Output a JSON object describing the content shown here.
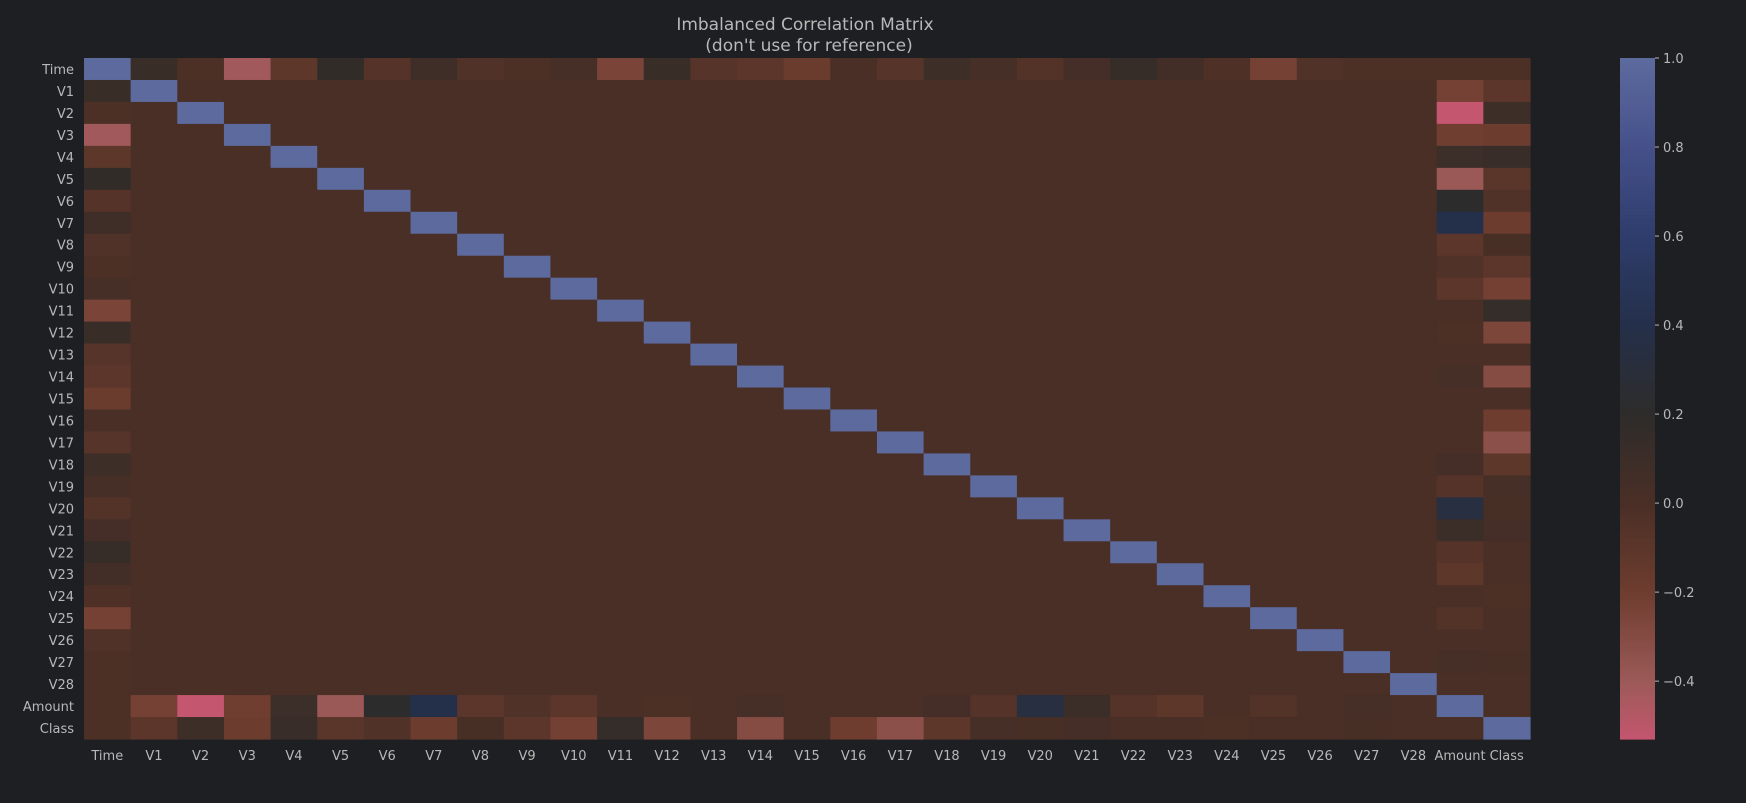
{
  "chart_data": {
    "type": "heatmap",
    "title": "Imbalanced Correlation Matrix",
    "subtitle": "(don't use for reference)",
    "xlabel": "",
    "ylabel": "",
    "labels": [
      "Time",
      "V1",
      "V2",
      "V3",
      "V4",
      "V5",
      "V6",
      "V7",
      "V8",
      "V9",
      "V10",
      "V11",
      "V12",
      "V13",
      "V14",
      "V15",
      "V16",
      "V17",
      "V18",
      "V19",
      "V20",
      "V21",
      "V22",
      "V23",
      "V24",
      "V25",
      "V26",
      "V27",
      "V28",
      "Amount",
      "Class"
    ],
    "colorbar": {
      "range": [
        -0.53,
        1.0
      ],
      "ticks": [
        1.0,
        0.8,
        0.6,
        0.4,
        0.2,
        0.0,
        -0.2,
        -0.4
      ],
      "tick_labels": [
        "1.0",
        "0.8",
        "0.6",
        "0.4",
        "0.2",
        "0.0",
        "−0.2",
        "−0.4"
      ],
      "colormap_stops": [
        {
          "v": -0.53,
          "color": "#c4566f"
        },
        {
          "v": -0.4,
          "color": "#9c5a58"
        },
        {
          "v": -0.2,
          "color": "#6e3d2f"
        },
        {
          "v": 0.0,
          "color": "#4a2f26"
        },
        {
          "v": 0.2,
          "color": "#2e2c2a"
        },
        {
          "v": 0.4,
          "color": "#24304a"
        },
        {
          "v": 0.6,
          "color": "#2e3d6c"
        },
        {
          "v": 0.8,
          "color": "#45508a"
        },
        {
          "v": 1.0,
          "color": "#5d6a9e"
        }
      ]
    },
    "time_corr": [
      1.0,
      0.12,
      -0.01,
      -0.42,
      -0.11,
      0.17,
      -0.06,
      0.08,
      -0.04,
      -0.01,
      0.03,
      -0.25,
      0.12,
      -0.07,
      -0.1,
      -0.18,
      0.01,
      -0.07,
      0.09,
      0.03,
      -0.05,
      0.04,
      0.14,
      0.05,
      -0.02,
      -0.23,
      -0.04,
      -0.01,
      -0.01,
      -0.01,
      -0.01
    ],
    "amount_corr": [
      -0.01,
      -0.23,
      -0.53,
      -0.21,
      0.1,
      -0.39,
      0.22,
      0.4,
      -0.1,
      -0.04,
      -0.1,
      0.0,
      -0.01,
      0.01,
      0.03,
      -0.0,
      -0.0,
      0.01,
      0.04,
      -0.06,
      0.34,
      0.11,
      -0.06,
      -0.11,
      0.01,
      -0.05,
      -0.0,
      0.03,
      0.01,
      1.0,
      0.01
    ],
    "class_corr": [
      -0.01,
      -0.1,
      0.09,
      -0.19,
      0.13,
      -0.09,
      -0.04,
      -0.19,
      0.02,
      -0.1,
      -0.22,
      0.15,
      -0.26,
      -0.0,
      -0.3,
      -0.0,
      -0.2,
      -0.33,
      -0.11,
      0.03,
      0.02,
      0.04,
      0.0,
      -0.0,
      -0.01,
      0.0,
      0.0,
      0.02,
      0.01,
      0.01,
      1.0
    ]
  }
}
